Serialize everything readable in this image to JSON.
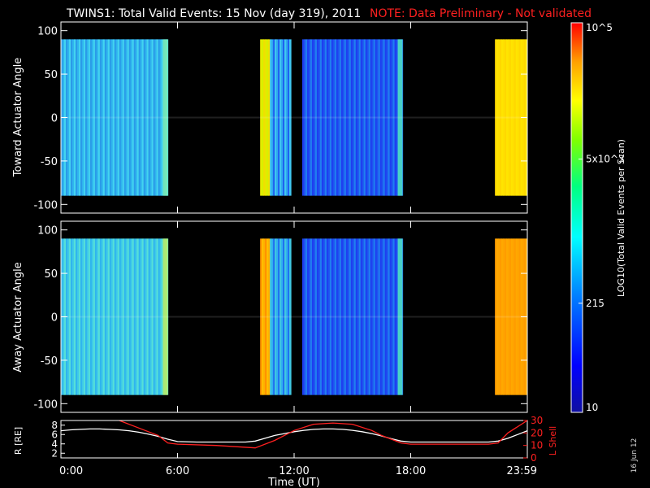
{
  "title": "TWINS1: Total Valid Events: 15 Nov (day 319), 2011",
  "note": "NOTE: Data Preliminary - Not validated",
  "date_stamp": "16 Jun 12",
  "colorbar": {
    "label": "LOG10(Total Valid Events per Scan)",
    "ticks": [
      "10",
      "215",
      "5x10^3",
      "10^5"
    ],
    "colors": [
      "#1010a0",
      "#0000ff",
      "#0080ff",
      "#00ffff",
      "#00ff80",
      "#80ff00",
      "#ffff00",
      "#ffa000",
      "#ff0000"
    ]
  },
  "chart_data": [
    {
      "type": "heatmap",
      "name": "toward",
      "ylabel": "Toward Actuator Angle",
      "ylim": [
        -110,
        110
      ],
      "y_ticks": [
        "100",
        "50",
        "0",
        "-50",
        "-100"
      ],
      "x_range_hours": [
        0,
        24
      ],
      "segments": [
        {
          "start": "0:00",
          "end": "5:30",
          "level": 0.58,
          "colors": [
            "#2a9ae8",
            "#2fb4ee",
            "#43d4f0"
          ],
          "right_edge": "#7ff0b0"
        },
        {
          "start": "10:15",
          "end": "10:45",
          "level": 0.85,
          "colors": [
            "#f0e000",
            "#e6e800",
            "#d8f000"
          ]
        },
        {
          "start": "10:45",
          "end": "11:50",
          "level": 0.45,
          "colors": [
            "#2fa8f0",
            "#1f60f0",
            "#40c8f0"
          ]
        },
        {
          "start": "12:25",
          "end": "17:35",
          "level": 0.35,
          "colors": [
            "#1e3ef0",
            "#1e54f0",
            "#2080f0"
          ],
          "right_edge": "#50e8c0"
        },
        {
          "start": "22:20",
          "end": "23:59",
          "level": 0.88,
          "colors": [
            "#ffe000",
            "#ffd800",
            "#ffe400"
          ]
        }
      ]
    },
    {
      "type": "heatmap",
      "name": "away",
      "ylabel": "Away Actuator Angle",
      "ylim": [
        -110,
        110
      ],
      "y_ticks": [
        "100",
        "50",
        "0",
        "-50",
        "-100"
      ],
      "x_range_hours": [
        0,
        24
      ],
      "segments": [
        {
          "start": "0:00",
          "end": "5:30",
          "level": 0.6,
          "colors": [
            "#2fb4ee",
            "#3ecae8",
            "#56e0d8"
          ],
          "right_edge": "#c0f060"
        },
        {
          "start": "10:15",
          "end": "10:45",
          "level": 0.88,
          "colors": [
            "#ffb000",
            "#ff9000",
            "#ffc000"
          ]
        },
        {
          "start": "10:45",
          "end": "11:50",
          "level": 0.45,
          "colors": [
            "#30b0f0",
            "#2070f0",
            "#40c8e0"
          ]
        },
        {
          "start": "12:25",
          "end": "17:35",
          "level": 0.35,
          "colors": [
            "#1e3ef0",
            "#1e54f0",
            "#2080f0"
          ],
          "right_edge": "#50e8c0"
        },
        {
          "start": "22:20",
          "end": "23:59",
          "level": 0.9,
          "colors": [
            "#ffa400",
            "#ff9c00",
            "#ffa800"
          ]
        }
      ]
    },
    {
      "type": "line",
      "name": "orbit",
      "xlabel": "Time (UT)",
      "x_tick_labels": [
        "0:00",
        "6:00",
        "12:00",
        "18:00",
        "23:59"
      ],
      "x_tick_hours": [
        0,
        6,
        12,
        18,
        24
      ],
      "ylabel_left": "R [RE]",
      "y_left_ticks": [
        "8",
        "6",
        "4",
        "2"
      ],
      "ylim_left": [
        1,
        9
      ],
      "ylabel_right": "L Shell",
      "y_right_ticks": [
        "30",
        "20",
        "10",
        "0"
      ],
      "ylim_right": [
        0,
        30
      ],
      "series": [
        {
          "axis": "left",
          "color": "#ffffff",
          "x": [
            0,
            0.5,
            1,
            1.5,
            2,
            2.5,
            3,
            3.5,
            4,
            4.5,
            5,
            5.5,
            6,
            7,
            8,
            9,
            9.5,
            10,
            10.5,
            11,
            11.5,
            12,
            12.5,
            13,
            13.5,
            14,
            14.5,
            15,
            15.5,
            16,
            16.5,
            17,
            17.5,
            18,
            19,
            20,
            21,
            22,
            22.5,
            23,
            23.5,
            24
          ],
          "y": [
            6.8,
            7.0,
            7.1,
            7.2,
            7.2,
            7.1,
            7.0,
            6.8,
            6.5,
            6.1,
            5.6,
            5.0,
            4.5,
            4.4,
            4.4,
            4.4,
            4.4,
            4.6,
            5.2,
            5.8,
            6.2,
            6.6,
            6.9,
            7.1,
            7.2,
            7.2,
            7.1,
            6.9,
            6.6,
            6.2,
            5.7,
            5.1,
            4.6,
            4.4,
            4.4,
            4.4,
            4.4,
            4.4,
            4.6,
            5.2,
            6.0,
            6.8
          ]
        },
        {
          "axis": "right",
          "color": "#ff2020",
          "x": [
            3,
            4,
            5,
            5.5,
            6,
            8,
            9,
            10,
            11,
            12,
            13,
            14,
            15,
            16,
            16.5,
            17,
            17.5,
            18,
            20,
            21,
            22,
            22.5,
            23,
            24
          ],
          "y": [
            30,
            24,
            18,
            12,
            11,
            10,
            9,
            8,
            14,
            22,
            27,
            28,
            27,
            22,
            18,
            15,
            12,
            11,
            11,
            11,
            11,
            12,
            20,
            30
          ]
        }
      ]
    }
  ]
}
